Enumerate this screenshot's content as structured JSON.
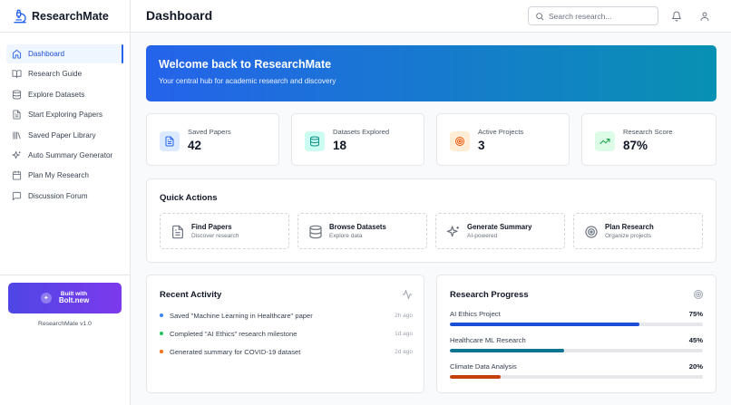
{
  "app": {
    "name": "ResearchMate",
    "version": "ResearchMate v1.0"
  },
  "sidebar": {
    "items": [
      {
        "label": "Dashboard",
        "icon": "home-icon",
        "active": true
      },
      {
        "label": "Research Guide",
        "icon": "book-open-icon"
      },
      {
        "label": "Explore Datasets",
        "icon": "database-icon"
      },
      {
        "label": "Start Exploring Papers",
        "icon": "file-text-icon"
      },
      {
        "label": "Saved Paper Library",
        "icon": "library-icon"
      },
      {
        "label": "Auto Summary Generator",
        "icon": "sparkles-icon"
      },
      {
        "label": "Plan My Research",
        "icon": "calendar-icon"
      },
      {
        "label": "Discussion Forum",
        "icon": "message-square-icon"
      }
    ],
    "bolt": {
      "line1": "Built with",
      "line2": "Bolt.new"
    }
  },
  "header": {
    "title": "Dashboard",
    "search_placeholder": "Search research..."
  },
  "welcome": {
    "title": "Welcome back to ResearchMate",
    "subtitle": "Your central hub for academic research and discovery"
  },
  "stats": [
    {
      "label": "Saved Papers",
      "value": "42",
      "icon": "file-text-icon",
      "color": "#2563eb",
      "bg": "#dbeafe"
    },
    {
      "label": "Datasets Explored",
      "value": "18",
      "icon": "database-icon",
      "color": "#0d9488",
      "bg": "#ccfbf1"
    },
    {
      "label": "Active Projects",
      "value": "3",
      "icon": "target-icon",
      "color": "#ea580c",
      "bg": "#ffedd5"
    },
    {
      "label": "Research Score",
      "value": "87%",
      "icon": "trending-up-icon",
      "color": "#16a34a",
      "bg": "#dcfce7"
    }
  ],
  "quick_actions": {
    "title": "Quick Actions",
    "items": [
      {
        "label": "Find Papers",
        "sub": "Discover research",
        "icon": "file-text-icon"
      },
      {
        "label": "Browse Datasets",
        "sub": "Explore data",
        "icon": "database-icon"
      },
      {
        "label": "Generate Summary",
        "sub": "AI-powered",
        "icon": "sparkles-icon"
      },
      {
        "label": "Plan Research",
        "sub": "Organize projects",
        "icon": "target-icon"
      }
    ]
  },
  "recent_activity": {
    "title": "Recent Activity",
    "items": [
      {
        "text": "Saved \"Machine Learning in Healthcare\" paper",
        "time": "2h ago",
        "color": "#3b82f6"
      },
      {
        "text": "Completed \"AI Ethics\" research milestone",
        "time": "1d ago",
        "color": "#22c55e"
      },
      {
        "text": "Generated summary for COVID-19 dataset",
        "time": "2d ago",
        "color": "#f97316"
      }
    ]
  },
  "research_progress": {
    "title": "Research Progress",
    "items": [
      {
        "label": "AI Ethics Project",
        "value": "75%",
        "fraction": 0.75,
        "color": "#1d4ed8"
      },
      {
        "label": "Healthcare ML Research",
        "value": "45%",
        "fraction": 0.45,
        "color": "#0e7490"
      },
      {
        "label": "Climate Data Analysis",
        "value": "20%",
        "fraction": 0.2,
        "color": "#c2410c"
      }
    ]
  }
}
